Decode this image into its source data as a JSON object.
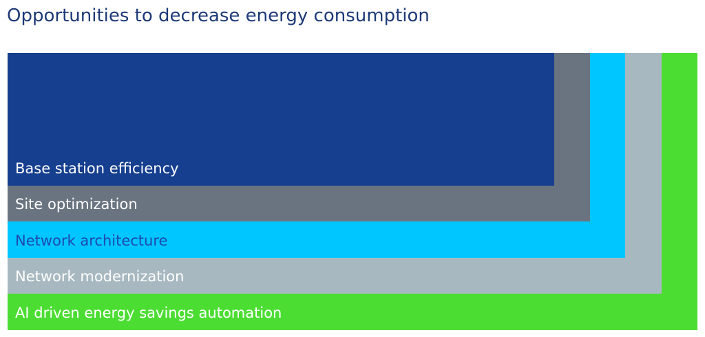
{
  "header": {
    "title": "Opportunities to decrease energy consumption"
  },
  "layers": [
    {
      "label": "Base station efficiency"
    },
    {
      "label": "Site optimization"
    },
    {
      "label": "Network architecture"
    },
    {
      "label": "Network modernization"
    },
    {
      "label": "AI driven energy savings automation"
    }
  ]
}
